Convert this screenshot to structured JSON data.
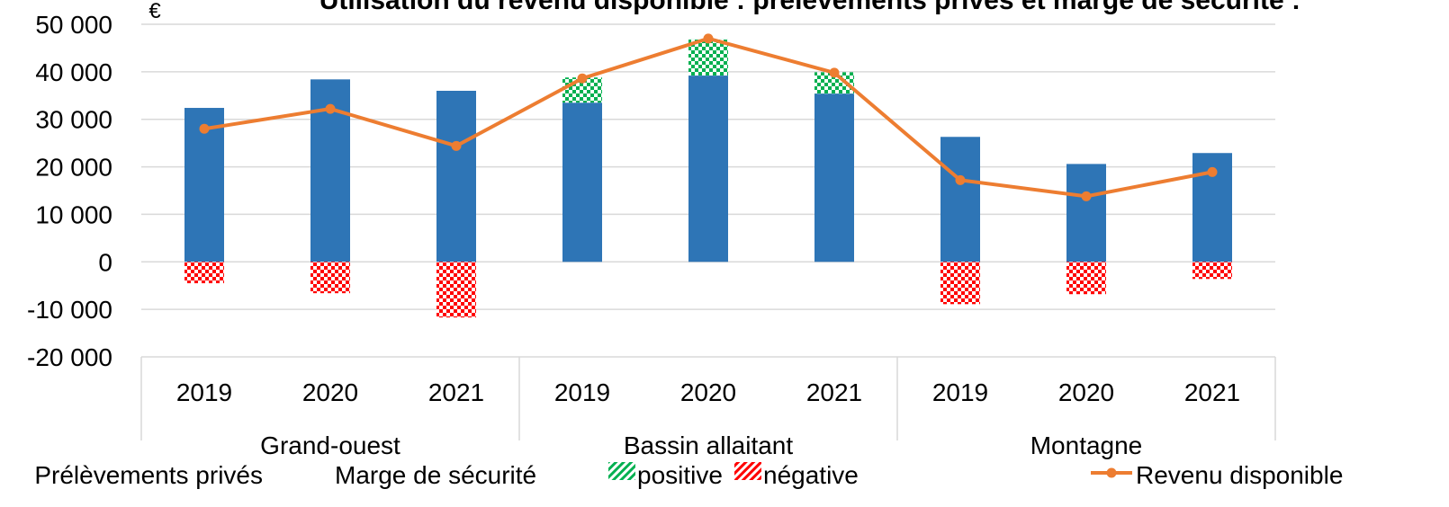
{
  "chart_data": {
    "type": "bar",
    "title": "Utilisation du revenu disponible : prélèvements privés et marge de sécurité :",
    "y_label": "€",
    "categories": [
      "2019",
      "2020",
      "2021",
      "2019",
      "2020",
      "2021",
      "2019",
      "2020",
      "2021"
    ],
    "groups": [
      "Grand-ouest",
      "Bassin allaitant",
      "Montagne"
    ],
    "legend_title": "Marge de sécurité",
    "series": [
      {
        "name": "Prélèvements privés",
        "type": "bar",
        "color": "#2E75B6",
        "values": [
          32400,
          38400,
          36000,
          33500,
          39200,
          35400,
          26300,
          20600,
          22900
        ]
      },
      {
        "name": "positive",
        "type": "bar",
        "color": "#00B050",
        "pattern": "checker",
        "values": [
          null,
          null,
          null,
          5300,
          7600,
          4500,
          null,
          null,
          null
        ]
      },
      {
        "name": "négative",
        "type": "bar",
        "color": "#FF0000",
        "pattern": "checker",
        "values": [
          -4500,
          -6600,
          -11700,
          null,
          null,
          null,
          -8900,
          -6800,
          -3600
        ]
      },
      {
        "name": "Revenu disponible",
        "type": "line",
        "color": "#ED7D31",
        "values": [
          28000,
          32200,
          24400,
          38600,
          47000,
          39800,
          17200,
          13800,
          18900
        ]
      }
    ],
    "ylim": [
      -20000,
      50000
    ],
    "yticks": [
      {
        "value": -20000,
        "label": "-20 000"
      },
      {
        "value": -10000,
        "label": "-10 000"
      },
      0,
      {
        "value": 10000,
        "label": "10 000"
      },
      {
        "value": 20000,
        "label": "20 000"
      },
      {
        "value": 30000,
        "label": "30 000"
      },
      {
        "value": 40000,
        "label": "40 000"
      },
      {
        "value": 50000,
        "label": "50 000"
      }
    ],
    "grid": true
  }
}
